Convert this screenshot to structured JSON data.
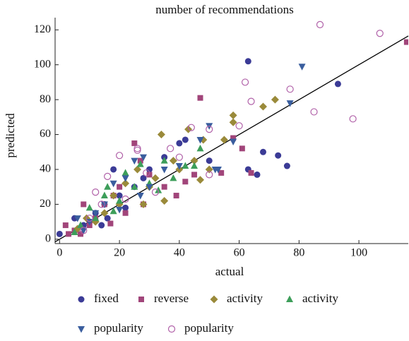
{
  "chart_data": {
    "type": "scatter",
    "title": "number of recommendations",
    "xlabel": "actual",
    "ylabel": "predicted",
    "xlim": [
      -1.5,
      116.5
    ],
    "ylim": [
      -2.5,
      127
    ],
    "xticks": [
      0,
      20,
      40,
      60,
      80,
      100
    ],
    "yticks": [
      0,
      20,
      40,
      60,
      80,
      100,
      120
    ],
    "identity_line": true,
    "series": [
      {
        "name": "fixed",
        "color": "#3b3b96",
        "marker": "circle",
        "filled": true,
        "x": [
          63,
          93,
          63,
          66,
          68,
          73,
          76,
          50,
          40,
          35,
          42,
          30,
          18,
          10,
          12,
          15,
          20,
          8,
          5,
          0,
          25,
          22,
          14,
          28,
          16
        ],
        "values": [
          102,
          89,
          40,
          37,
          50,
          48,
          42,
          45,
          55,
          47,
          57,
          40,
          40,
          10,
          15,
          20,
          25,
          8,
          12,
          3,
          30,
          18,
          8,
          35,
          12
        ]
      },
      {
        "name": "reverse",
        "color": "#a1457a",
        "marker": "square",
        "filled": true,
        "x": [
          116,
          47,
          58,
          61,
          64,
          42,
          30,
          25,
          20,
          15,
          10,
          5,
          2,
          8,
          12,
          18,
          22,
          35,
          28,
          45,
          17,
          7,
          27,
          39,
          54,
          3
        ],
        "values": [
          113,
          81,
          58,
          52,
          38,
          33,
          37,
          55,
          30,
          20,
          8,
          5,
          8,
          20,
          12,
          25,
          15,
          30,
          20,
          37,
          9,
          3,
          45,
          25,
          38,
          3
        ]
      },
      {
        "name": "activity",
        "color": "#9a8a3a",
        "marker": "diamond",
        "filled": true,
        "x": [
          72,
          68,
          58,
          58,
          55,
          48,
          45,
          43,
          34,
          40,
          38,
          35,
          30,
          26,
          22,
          18,
          15,
          12,
          9,
          6,
          50,
          47,
          28,
          20,
          32
        ],
        "values": [
          80,
          76,
          71,
          67,
          57,
          57,
          45,
          63,
          60,
          40,
          45,
          22,
          30,
          40,
          32,
          25,
          15,
          10,
          12,
          6,
          40,
          34,
          20,
          20,
          35
        ]
      },
      {
        "name": "activity",
        "color": "#3d9e5a",
        "marker": "triangle",
        "filled": true,
        "x": [
          47,
          35,
          42,
          30,
          27,
          25,
          20,
          18,
          15,
          12,
          10,
          7,
          5,
          33,
          22,
          38,
          16,
          45
        ],
        "values": [
          52,
          45,
          42,
          32,
          43,
          30,
          22,
          16,
          25,
          12,
          18,
          8,
          4,
          28,
          38,
          35,
          30,
          42
        ]
      },
      {
        "name": "popularity",
        "color": "#3a5e9e",
        "marker": "down-triangle",
        "filled": true,
        "x": [
          81,
          77,
          58,
          50,
          52,
          47,
          40,
          35,
          28,
          25,
          22,
          18,
          15,
          12,
          10,
          8,
          6,
          20,
          30,
          53,
          27
        ],
        "values": [
          99,
          78,
          56,
          65,
          40,
          57,
          42,
          40,
          47,
          45,
          35,
          32,
          20,
          15,
          10,
          5,
          12,
          17,
          30,
          40,
          25
        ]
      },
      {
        "name": "popularity",
        "color": "#b060a8",
        "marker": "circle",
        "filled": false,
        "x": [
          87,
          107,
          62,
          77,
          85,
          98,
          64,
          60,
          50,
          50,
          44,
          37,
          26,
          26,
          20,
          16,
          12,
          10,
          8,
          14,
          32,
          22,
          40,
          29
        ],
        "values": [
          123,
          118,
          90,
          86,
          73,
          69,
          79,
          65,
          63,
          37,
          64,
          52,
          52,
          51,
          48,
          36,
          27,
          12,
          5,
          20,
          27,
          23,
          47,
          38
        ]
      }
    ]
  }
}
